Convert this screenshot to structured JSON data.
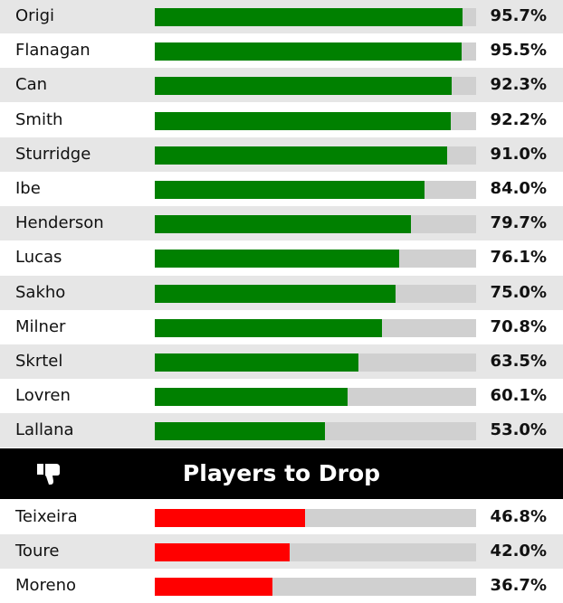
{
  "colors": {
    "keep": "#008000",
    "drop": "#ff0000",
    "track": "#d0d0d0",
    "shade": "#e6e6e6"
  },
  "drop_header": {
    "title": "Players to Drop",
    "icon": "thumbs-down-icon"
  },
  "chart_data": {
    "type": "bar",
    "orientation": "horizontal",
    "xlim": [
      0,
      100
    ],
    "unit": "%",
    "grid": false,
    "groups": [
      {
        "name": "",
        "color": "#008000",
        "categories": [
          "Origi",
          "Flanagan",
          "Can",
          "Smith",
          "Sturridge",
          "Ibe",
          "Henderson",
          "Lucas",
          "Sakho",
          "Milner",
          "Skrtel",
          "Lovren",
          "Lallana"
        ],
        "values": [
          95.7,
          95.5,
          92.3,
          92.2,
          91.0,
          84.0,
          79.7,
          76.1,
          75.0,
          70.8,
          63.5,
          60.1,
          53.0
        ],
        "labels": [
          "95.7%",
          "95.5%",
          "92.3%",
          "92.2%",
          "91.0%",
          "84.0%",
          "79.7%",
          "76.1%",
          "75.0%",
          "70.8%",
          "63.5%",
          "60.1%",
          "53.0%"
        ]
      },
      {
        "name": "Players to Drop",
        "color": "#ff0000",
        "categories": [
          "Teixeira",
          "Toure",
          "Moreno"
        ],
        "values": [
          46.8,
          42.0,
          36.7
        ],
        "labels": [
          "46.8%",
          "42.0%",
          "36.7%"
        ]
      }
    ]
  }
}
